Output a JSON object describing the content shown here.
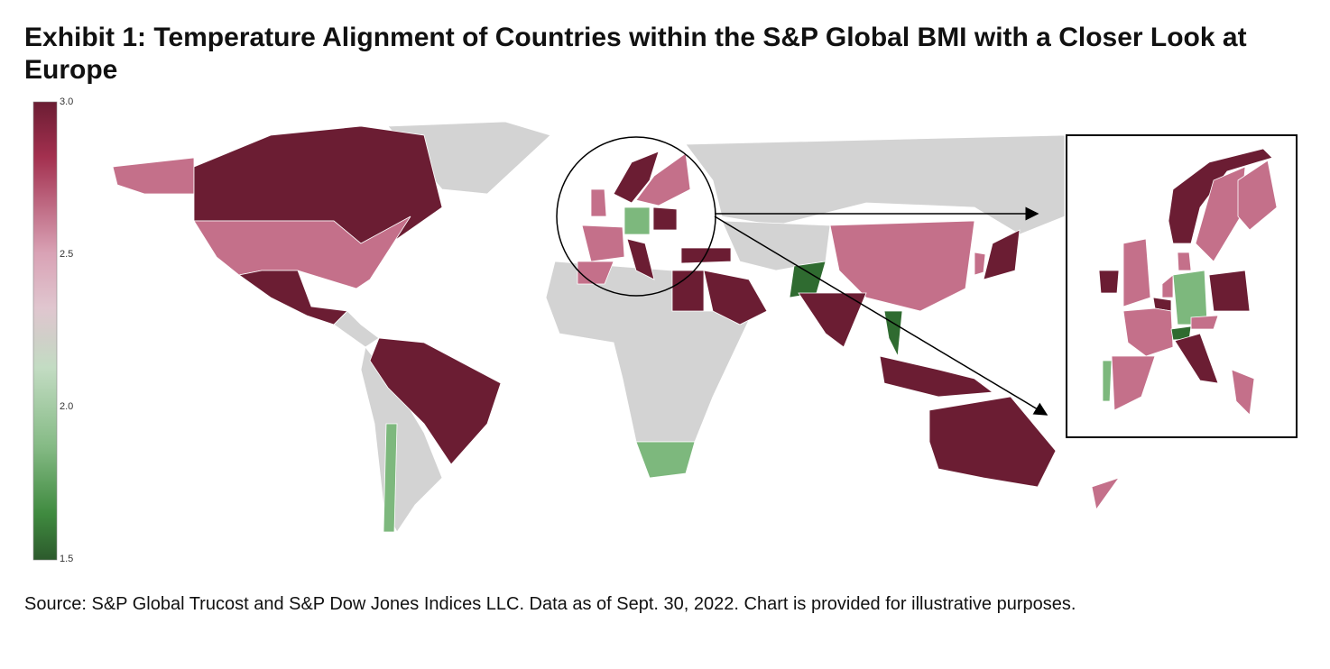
{
  "title": "Exhibit 1: Temperature Alignment of Countries within the S&P Global BMI with a Closer Look at Europe",
  "legend": {
    "ticks": [
      "3.0",
      "2.5",
      "2.0",
      "1.5"
    ],
    "range": [
      1.5,
      3.0
    ],
    "colors": {
      "high": "#6b1d33",
      "mid_high": "#c4708a",
      "neutral": "#d3d3d3",
      "mid_low": "#7db87d",
      "low": "#2f6b30"
    }
  },
  "inset": {
    "region": "Europe"
  },
  "source": "Source: S&P Global Trucost and S&P Dow Jones Indices LLC. Data as of Sept. 30, 2022. Chart is provided for illustrative purposes."
}
